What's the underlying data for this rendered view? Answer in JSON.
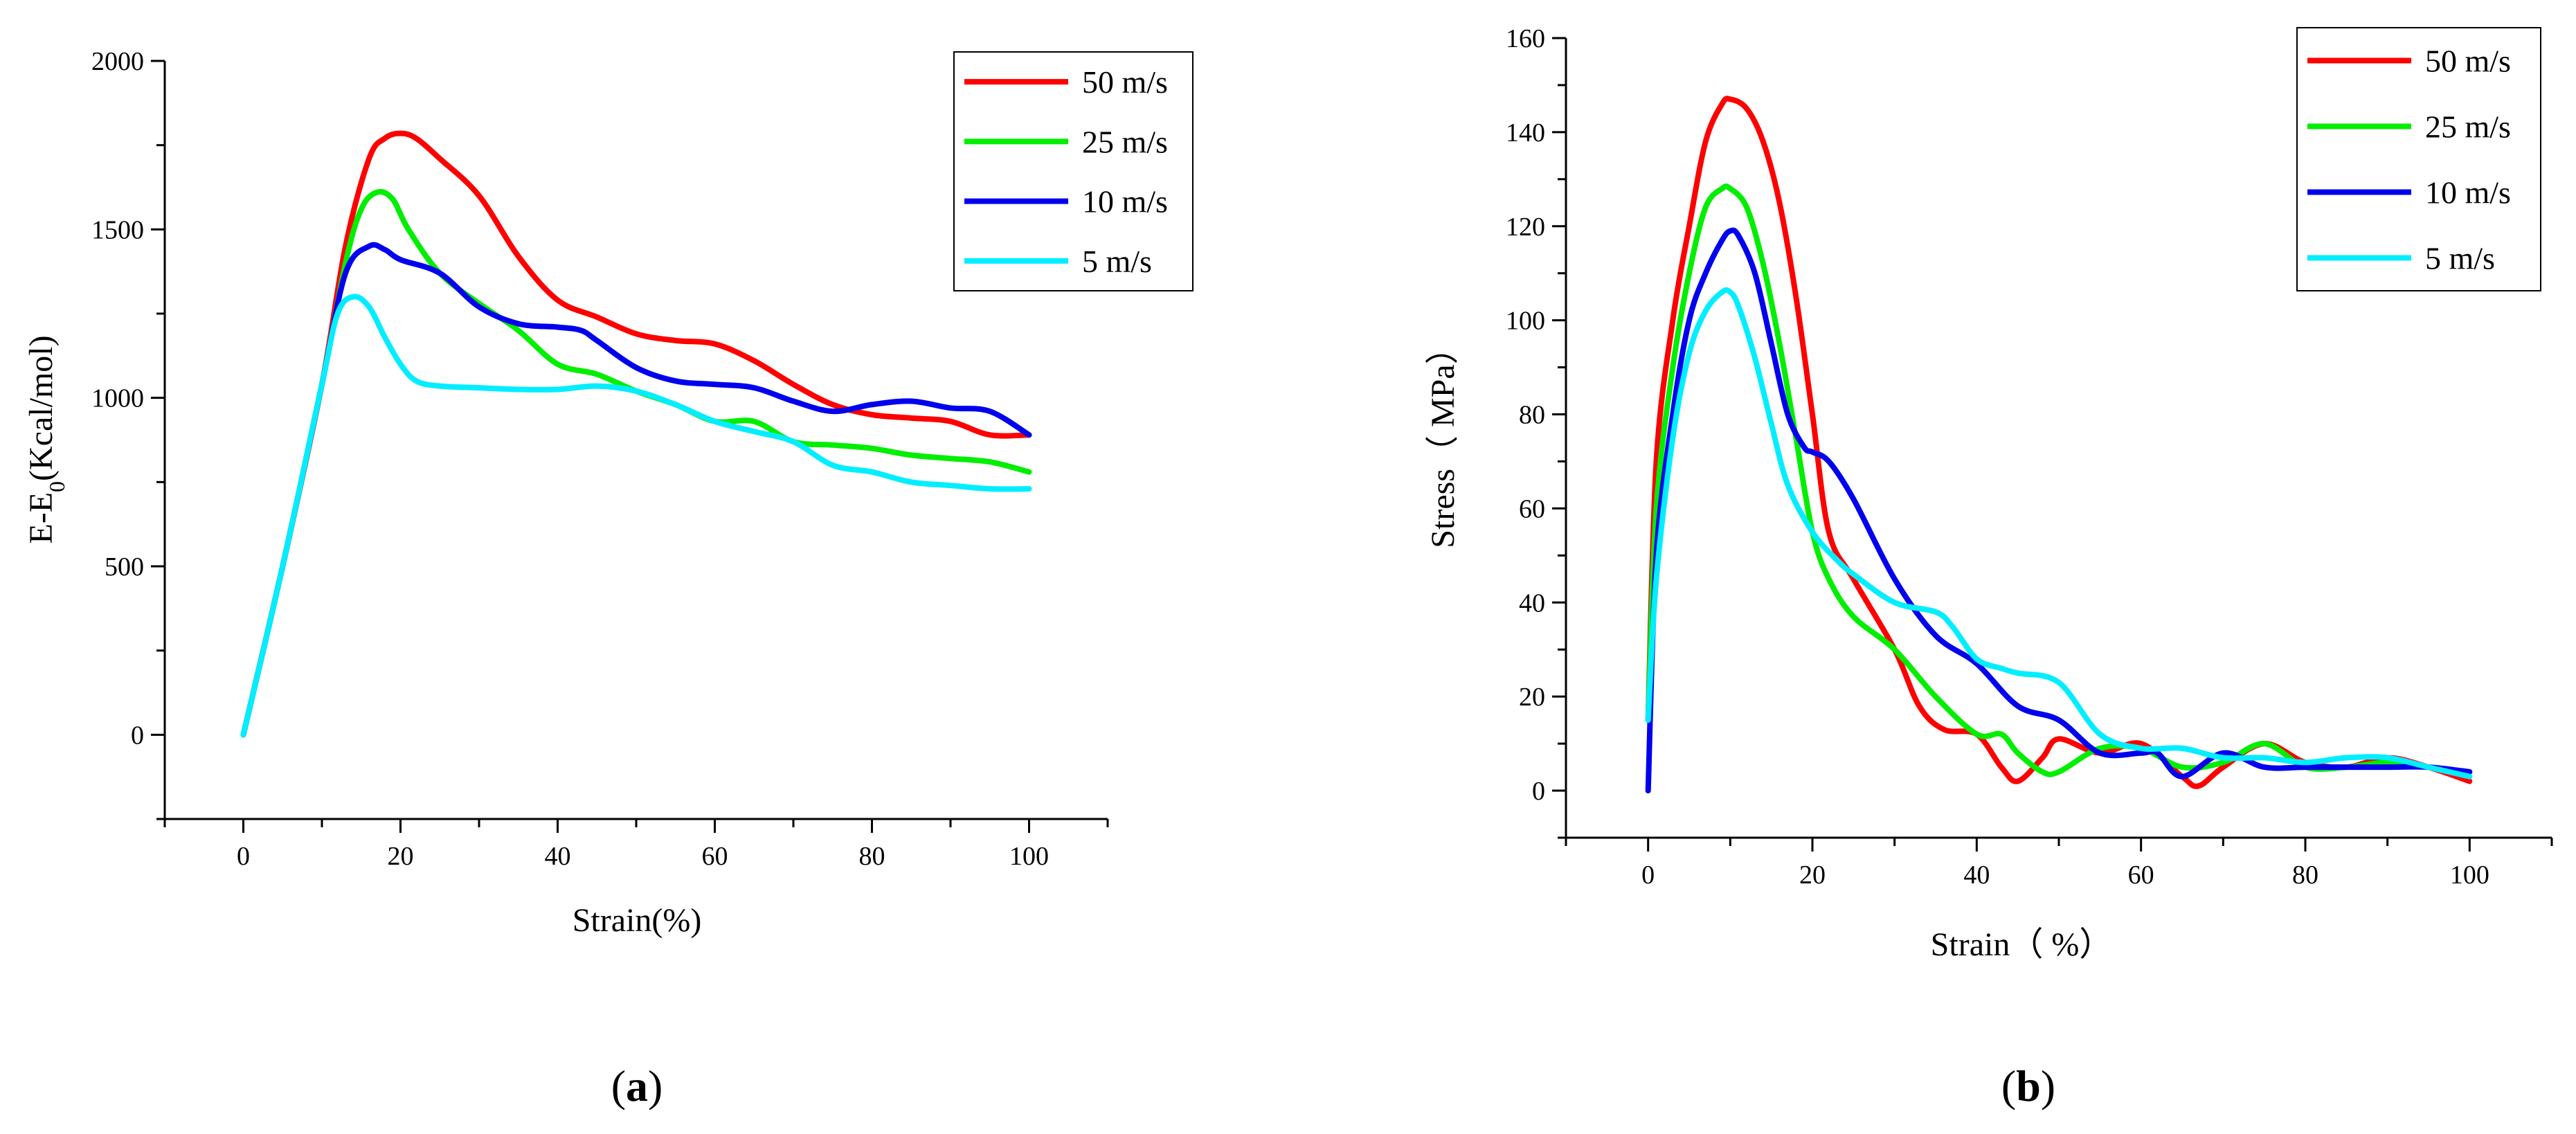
{
  "chart_data": [
    {
      "type": "line",
      "panel_label": "(a)",
      "xlabel": "Strain(%)",
      "ylabel": "E-E0(Kcal/mol)",
      "ylabel_main": "E-E",
      "ylabel_sub": "0",
      "ylabel_rest": "(Kcal/mol)",
      "xlim": [
        -10,
        110
      ],
      "ylim": [
        -250,
        2000
      ],
      "xticks": [
        0,
        20,
        40,
        60,
        80,
        100
      ],
      "yticks": [
        0,
        500,
        1000,
        1500,
        2000
      ],
      "grid": false,
      "legend_position": "top-right",
      "series": [
        {
          "name": "50 m/s",
          "color": "#ff0000",
          "x": [
            0,
            5,
            10,
            13,
            16,
            18,
            20,
            22,
            25,
            30,
            35,
            40,
            45,
            50,
            55,
            60,
            65,
            70,
            75,
            80,
            85,
            90,
            95,
            100
          ],
          "y": [
            0,
            500,
            1040,
            1450,
            1710,
            1770,
            1785,
            1770,
            1710,
            1600,
            1420,
            1290,
            1240,
            1190,
            1170,
            1160,
            1110,
            1040,
            980,
            950,
            940,
            930,
            890,
            890
          ]
        },
        {
          "name": "25 m/s",
          "color": "#00ee00",
          "x": [
            0,
            5,
            10,
            13,
            15,
            17,
            19,
            21,
            25,
            30,
            35,
            40,
            45,
            50,
            55,
            60,
            65,
            70,
            75,
            80,
            85,
            90,
            95,
            100
          ],
          "y": [
            0,
            500,
            1040,
            1400,
            1560,
            1610,
            1590,
            1500,
            1370,
            1280,
            1200,
            1100,
            1070,
            1020,
            980,
            930,
            930,
            870,
            860,
            850,
            830,
            820,
            810,
            780
          ]
        },
        {
          "name": "10 m/s",
          "color": "#0000ee",
          "x": [
            0,
            5,
            10,
            13,
            16,
            18,
            20,
            25,
            30,
            35,
            40,
            43,
            45,
            50,
            55,
            60,
            65,
            70,
            75,
            80,
            85,
            90,
            95,
            100
          ],
          "y": [
            0,
            500,
            1040,
            1370,
            1450,
            1440,
            1410,
            1370,
            1270,
            1220,
            1210,
            1200,
            1170,
            1090,
            1050,
            1040,
            1030,
            990,
            960,
            980,
            990,
            970,
            960,
            890
          ]
        },
        {
          "name": "5 m/s",
          "color": "#00eeff",
          "x": [
            0,
            5,
            10,
            12,
            14,
            16,
            18,
            20,
            22,
            25,
            30,
            35,
            40,
            45,
            50,
            55,
            60,
            65,
            70,
            75,
            80,
            85,
            90,
            95,
            100
          ],
          "y": [
            0,
            500,
            1040,
            1250,
            1300,
            1270,
            1180,
            1100,
            1050,
            1035,
            1030,
            1025,
            1025,
            1035,
            1020,
            980,
            930,
            900,
            870,
            800,
            780,
            750,
            740,
            730,
            730
          ]
        }
      ]
    },
    {
      "type": "line",
      "panel_label": "(b)",
      "xlabel": "Strain（ %）",
      "ylabel": "Stress（ MPa）",
      "xlim": [
        -10,
        110
      ],
      "ylim": [
        -10,
        160
      ],
      "xticks": [
        0,
        20,
        40,
        60,
        80,
        100
      ],
      "yticks": [
        0,
        20,
        40,
        60,
        80,
        100,
        120,
        140,
        160
      ],
      "grid": false,
      "legend_position": "top-right",
      "series": [
        {
          "name": "50 m/s",
          "color": "#ff0000",
          "x": [
            0,
            1,
            3,
            5,
            7,
            9,
            10,
            12,
            14,
            16,
            18,
            20,
            22,
            25,
            30,
            33,
            36,
            40,
            43,
            45,
            48,
            50,
            55,
            60,
            65,
            67,
            70,
            75,
            80,
            85,
            90,
            95,
            100
          ],
          "y": [
            15,
            70,
            100,
            120,
            138,
            146,
            147,
            145,
            138,
            125,
            105,
            80,
            55,
            45,
            30,
            18,
            13,
            12,
            5,
            2,
            7,
            11,
            8,
            10,
            3,
            1,
            5,
            10,
            6,
            5,
            7,
            5,
            2
          ]
        },
        {
          "name": "25 m/s",
          "color": "#00ee00",
          "x": [
            0,
            1,
            3,
            5,
            7,
            9,
            10,
            12,
            14,
            16,
            18,
            20,
            22,
            25,
            30,
            35,
            40,
            43,
            45,
            48,
            50,
            55,
            60,
            65,
            70,
            75,
            80,
            85,
            90,
            95,
            100
          ],
          "y": [
            15,
            60,
            90,
            110,
            124,
            128,
            128,
            124,
            112,
            95,
            75,
            55,
            45,
            37,
            30,
            20,
            12,
            12,
            8,
            4,
            4,
            9,
            9,
            5,
            6,
            10,
            5,
            5,
            6,
            5,
            4
          ]
        },
        {
          "name": "10 m/s",
          "color": "#0000ee",
          "x": [
            0,
            1,
            3,
            5,
            7,
            9,
            10,
            11,
            13,
            15,
            17,
            19,
            20,
            22,
            25,
            30,
            35,
            40,
            45,
            50,
            55,
            60,
            62,
            65,
            70,
            75,
            80,
            85,
            90,
            95,
            100
          ],
          "y": [
            0,
            50,
            80,
            100,
            110,
            117,
            119,
            118,
            110,
            95,
            80,
            73,
            72,
            70,
            62,
            45,
            33,
            27,
            18,
            15,
            8,
            8,
            8,
            3,
            8,
            5,
            5,
            5,
            5,
            5,
            4
          ]
        },
        {
          "name": "5 m/s",
          "color": "#00eeff",
          "x": [
            0,
            1,
            3,
            5,
            7,
            9,
            10,
            11,
            13,
            15,
            17,
            20,
            23,
            25,
            30,
            35,
            37,
            40,
            43,
            45,
            50,
            55,
            60,
            65,
            70,
            75,
            80,
            85,
            90,
            95,
            100
          ],
          "y": [
            15,
            45,
            75,
            93,
            102,
            106,
            106,
            103,
            92,
            78,
            65,
            55,
            49,
            46,
            40,
            38,
            35,
            28,
            26,
            25,
            23,
            12,
            9,
            9,
            7,
            7,
            6,
            7,
            7,
            5,
            3
          ]
        }
      ]
    }
  ]
}
